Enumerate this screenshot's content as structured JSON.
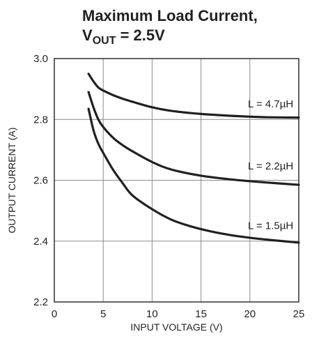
{
  "chart_data": {
    "type": "line",
    "title_line1": "Maximum Load Current,",
    "title_line2_prefix": "V",
    "title_line2_subscript": "OUT",
    "title_line2_suffix": " = 2.5V",
    "xlabel": "INPUT VOLTAGE (V)",
    "ylabel": "OUTPUT CURRENT (A)",
    "xlim": [
      0,
      25
    ],
    "ylim": [
      2.2,
      3.0
    ],
    "x_ticks": [
      0,
      5,
      10,
      15,
      20,
      25
    ],
    "x_tick_labels": [
      "0",
      "5",
      "10",
      "15",
      "20",
      "25"
    ],
    "y_ticks": [
      2.2,
      2.4,
      2.6,
      2.8,
      3.0
    ],
    "y_tick_labels": [
      "2.2",
      "2.4",
      "2.6",
      "2.8",
      "3.0"
    ],
    "grid": true,
    "legend": "none",
    "line_color": "#231f20",
    "series": [
      {
        "name": "L = 4.7µH",
        "x": [
          3.5,
          4,
          4.5,
          5,
          6,
          7,
          8,
          10,
          12,
          15,
          18,
          20,
          22,
          25
        ],
        "y": [
          2.95,
          2.925,
          2.905,
          2.895,
          2.88,
          2.868,
          2.858,
          2.84,
          2.828,
          2.818,
          2.812,
          2.809,
          2.807,
          2.806
        ]
      },
      {
        "name": "L = 2.2µH",
        "x": [
          3.5,
          4,
          4.5,
          5,
          6,
          7,
          8,
          10,
          12,
          15,
          18,
          20,
          22,
          25
        ],
        "y": [
          2.89,
          2.84,
          2.8,
          2.775,
          2.74,
          2.715,
          2.695,
          2.66,
          2.635,
          2.615,
          2.603,
          2.597,
          2.592,
          2.585
        ]
      },
      {
        "name": "L = 1.5µH",
        "x": [
          3.5,
          4,
          4.5,
          5,
          6,
          7,
          8,
          10,
          12,
          14,
          16,
          18,
          20,
          22,
          25
        ],
        "y": [
          2.835,
          2.765,
          2.72,
          2.69,
          2.635,
          2.59,
          2.55,
          2.505,
          2.47,
          2.448,
          2.432,
          2.42,
          2.411,
          2.404,
          2.395
        ]
      }
    ],
    "curve_labels": [
      {
        "text": "L = 4.7µH",
        "x": 19.8,
        "y": 2.84
      },
      {
        "text": "L = 2.2µH",
        "x": 19.8,
        "y": 2.635
      },
      {
        "text": "L = 1.5µH",
        "x": 19.8,
        "y": 2.44
      }
    ]
  }
}
